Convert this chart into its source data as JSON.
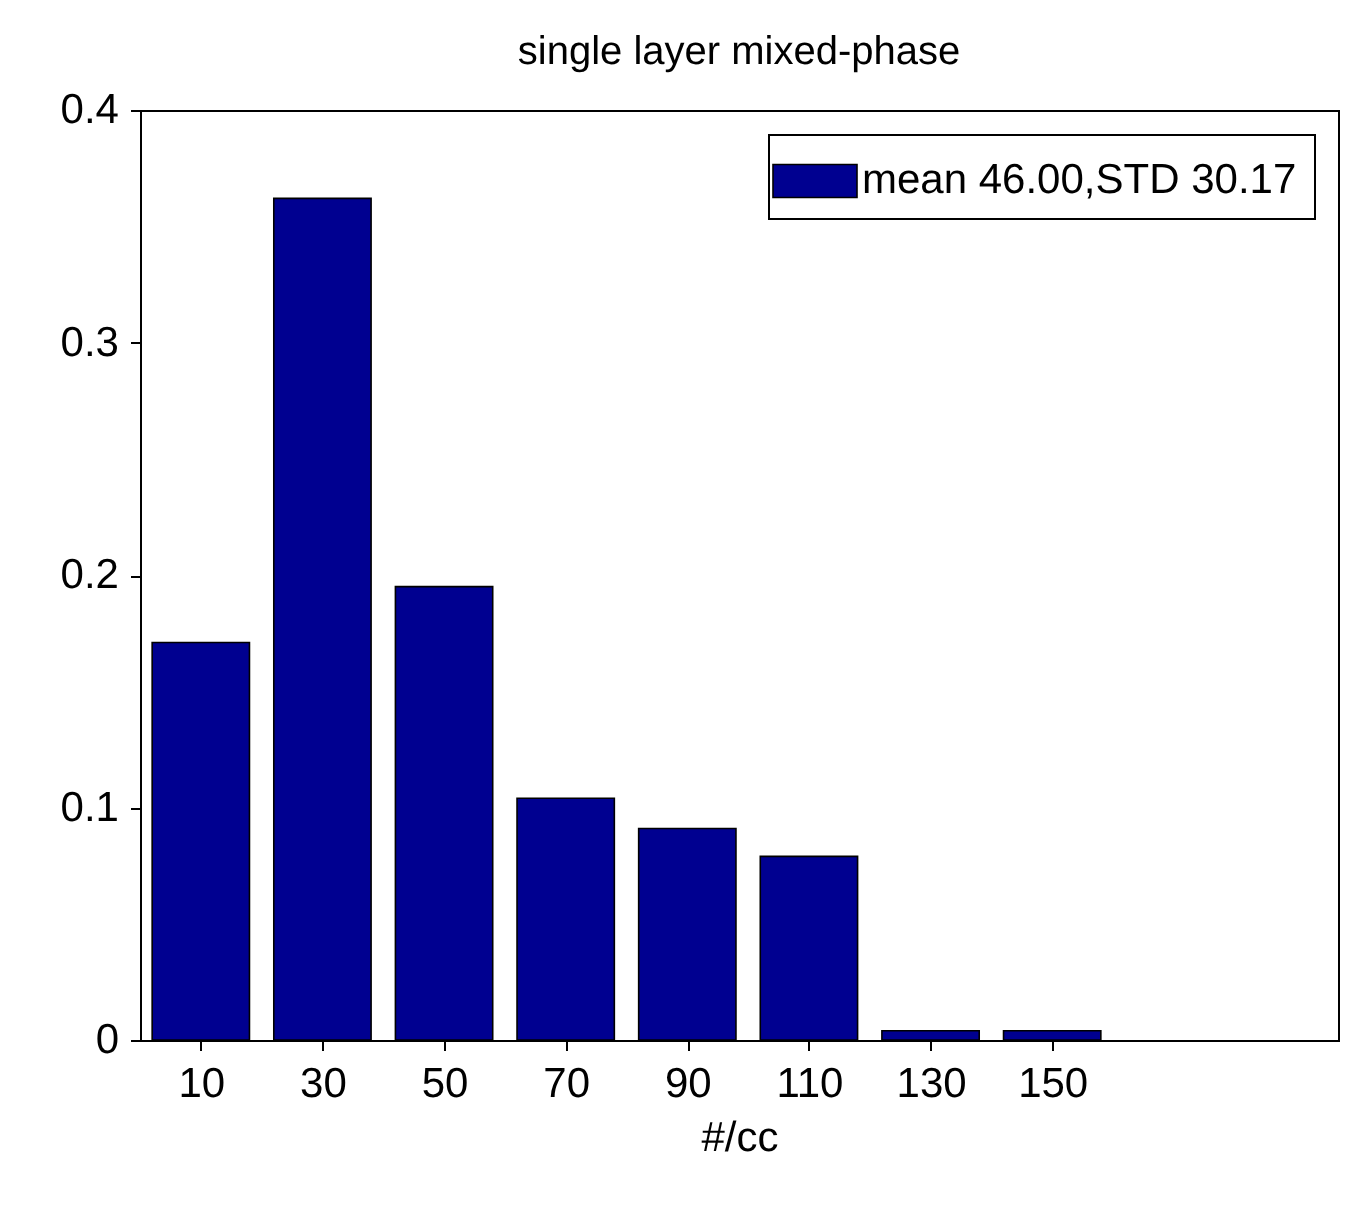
{
  "chart_data": {
    "type": "bar",
    "title": "single layer mixed-phase",
    "xlabel": "#/cc",
    "x": [
      10,
      30,
      50,
      70,
      90,
      110,
      130,
      150
    ],
    "series": [
      {
        "name": "mean 46.00,STD 30.17",
        "color": "#000090",
        "values": [
          0.171,
          0.362,
          0.195,
          0.104,
          0.091,
          0.079,
          0.004,
          0.004
        ]
      }
    ],
    "xlim": [
      0,
      197
    ],
    "xticks": [
      10,
      30,
      50,
      70,
      90,
      110,
      130,
      150
    ],
    "ylim": [
      0,
      0.4
    ],
    "yticks": [
      0,
      0.1,
      0.2,
      0.3,
      0.4
    ],
    "grid": false,
    "legend": "top right"
  }
}
